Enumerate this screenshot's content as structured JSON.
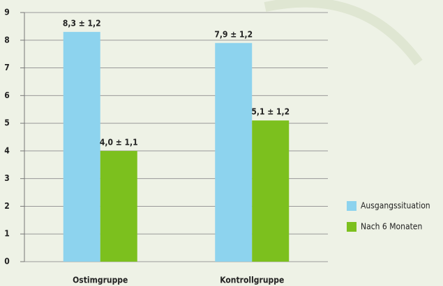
{
  "chart_data": {
    "type": "bar",
    "categories": [
      "Ostimgruppe",
      "Kontrollgruppe"
    ],
    "series": [
      {
        "name": "Ausgangssituation",
        "color": "#8dd3ee",
        "values": [
          8.3,
          7.9
        ],
        "value_labels": [
          "8,3 ± 1,2",
          "7,9 ± 1,2"
        ]
      },
      {
        "name": "Nach 6 Monaten",
        "color": "#7cc01e",
        "values": [
          4.0,
          5.1
        ],
        "value_labels": [
          "4,0 ± 1,1",
          "5,1 ± 1,2"
        ]
      }
    ],
    "ylim": [
      0,
      9
    ],
    "yticks": [
      0,
      1,
      2,
      3,
      4,
      5,
      6,
      7,
      8,
      9
    ],
    "grid": true,
    "legend": "right"
  }
}
